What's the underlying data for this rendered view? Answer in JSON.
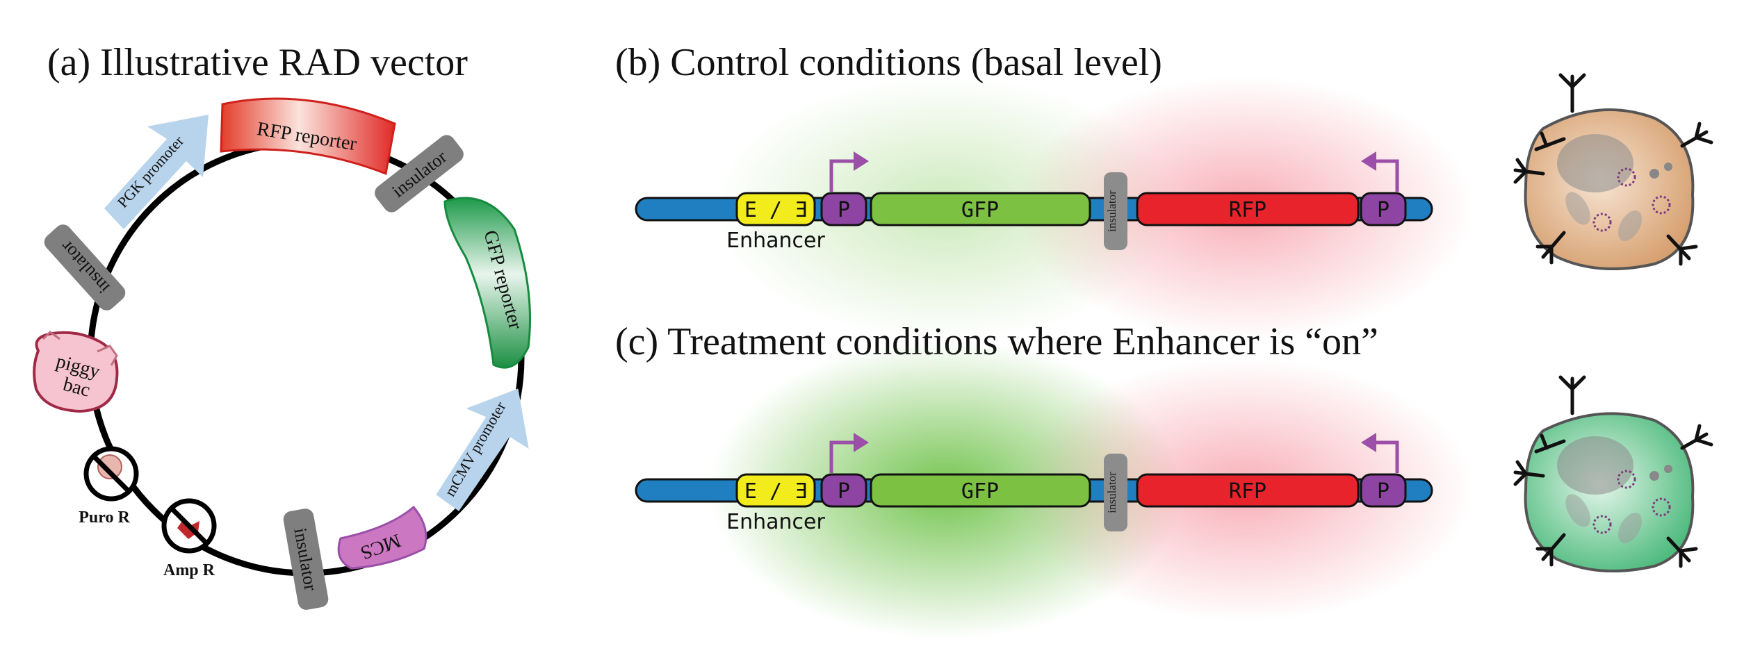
{
  "panel_a": {
    "title": "(a) Illustrative RAD vector",
    "labels": {
      "rfp_reporter": "RFP reporter",
      "insulator_top": "insulator",
      "gfp_reporter": "GFP reporter",
      "mcmv_promoter": "mCMV promoter",
      "mcs": "MCS",
      "insulator_bottom": "insulator",
      "amp_r": "Amp R",
      "puro_r": "Puro R",
      "piggy_bac": "piggy bac",
      "piggy": "piggy",
      "bac": "bac",
      "insulator_left": "insulator",
      "pgk_promoter": "PGK promoter"
    }
  },
  "panel_b": {
    "title": "(b) Control conditions (basal level)",
    "enhancer_box": "E / Ǝ",
    "enhancer_label": "Enhancer",
    "promoter_left": "P",
    "gfp": "GFP",
    "insulator": "insulator",
    "rfp": "RFP",
    "promoter_right": "P"
  },
  "panel_c": {
    "title": "(c) Treatment conditions where Enhancer is “on”",
    "enhancer_box": "E / Ǝ",
    "enhancer_label": "Enhancer",
    "promoter_left": "P",
    "gfp": "GFP",
    "insulator": "insulator",
    "rfp": "RFP",
    "promoter_right": "P"
  },
  "colors": {
    "backbone": "#1f7fc0",
    "enhancer": "#f2ec1c",
    "promoter": "#8e44a2",
    "gfp": "#7cc142",
    "rfp": "#e8232b",
    "insulator": "#8c8c8c",
    "arrow": "#9b4fa8",
    "cell_control": "#d9a77a",
    "cell_treatment": "#63c08a"
  }
}
